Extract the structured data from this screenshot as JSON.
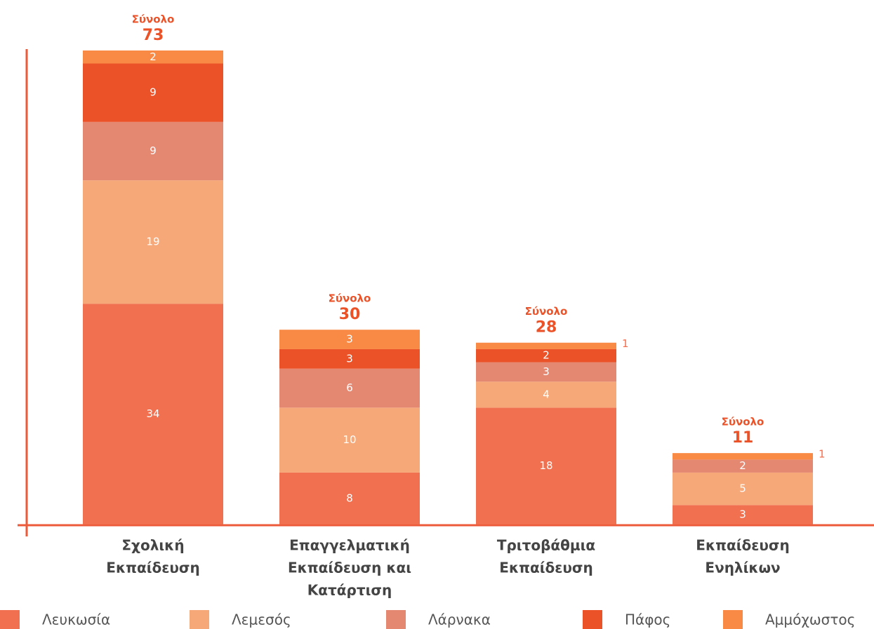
{
  "chart_data": {
    "type": "stacked_bar",
    "categories": [
      [
        "Σχολική",
        "Εκπαίδευση"
      ],
      [
        "Επαγγελματική",
        "Εκπαίδευση και",
        "Κατάρτιση"
      ],
      [
        "Τριτοβάθμια",
        "Εκπαίδευση"
      ],
      [
        "Εκπαίδευση",
        "Ενηλίκων"
      ]
    ],
    "series": [
      {
        "name": "Λευκωσία",
        "color": "#f07050",
        "values": [
          34,
          8,
          18,
          3
        ]
      },
      {
        "name": "Λεμεσός",
        "color": "#f7a878",
        "values": [
          19,
          10,
          4,
          5
        ]
      },
      {
        "name": "Λάρνακα",
        "color": "#e48872",
        "values": [
          9,
          6,
          3,
          2
        ]
      },
      {
        "name": "Πάφος",
        "color": "#ec5228",
        "values": [
          9,
          3,
          2,
          0
        ]
      },
      {
        "name": "Αμμόχωστος",
        "color": "#f98a45",
        "values": [
          2,
          3,
          1,
          1
        ]
      }
    ],
    "total_label": "Σύνολο",
    "totals": [
      73,
      30,
      28,
      11
    ],
    "ylim": [
      0,
      73
    ]
  }
}
